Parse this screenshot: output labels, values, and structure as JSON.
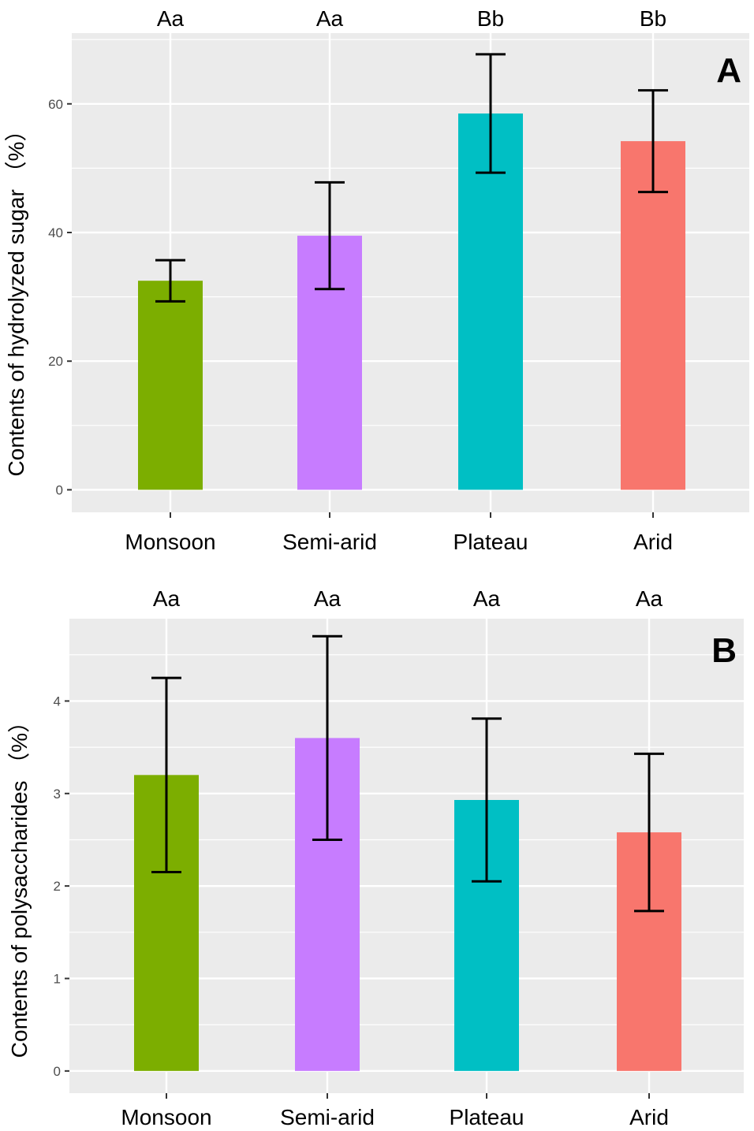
{
  "chart_data": [
    {
      "type": "bar",
      "panel_label": "A",
      "ylabel": "Contents of hydrolyzed sugar （%）",
      "categories": [
        "Monsoon",
        "Semi-arid",
        "Plateau",
        "Arid"
      ],
      "values": [
        32.5,
        39.5,
        58.5,
        54.2
      ],
      "errors": [
        3.2,
        8.3,
        9.2,
        7.9
      ],
      "significance": [
        "Aa",
        "Aa",
        "Bb",
        "Bb"
      ],
      "colors": [
        "#7CAE00",
        "#C77CFF",
        "#00BFC4",
        "#F8766D"
      ],
      "yticks": [
        0,
        20,
        40,
        60
      ],
      "ylim": [
        -3.5,
        71
      ]
    },
    {
      "type": "bar",
      "panel_label": "B",
      "ylabel": "Contents of polysaccharides （%）",
      "categories": [
        "Monsoon",
        "Semi-arid",
        "Plateau",
        "Arid"
      ],
      "values": [
        3.2,
        3.6,
        2.93,
        2.58
      ],
      "errors": [
        1.05,
        1.1,
        0.88,
        0.85
      ],
      "significance": [
        "Aa",
        "Aa",
        "Aa",
        "Aa"
      ],
      "colors": [
        "#7CAE00",
        "#C77CFF",
        "#00BFC4",
        "#F8766D"
      ],
      "yticks": [
        0,
        1,
        2,
        3,
        4
      ],
      "ylim": [
        -0.24,
        4.89
      ]
    }
  ]
}
